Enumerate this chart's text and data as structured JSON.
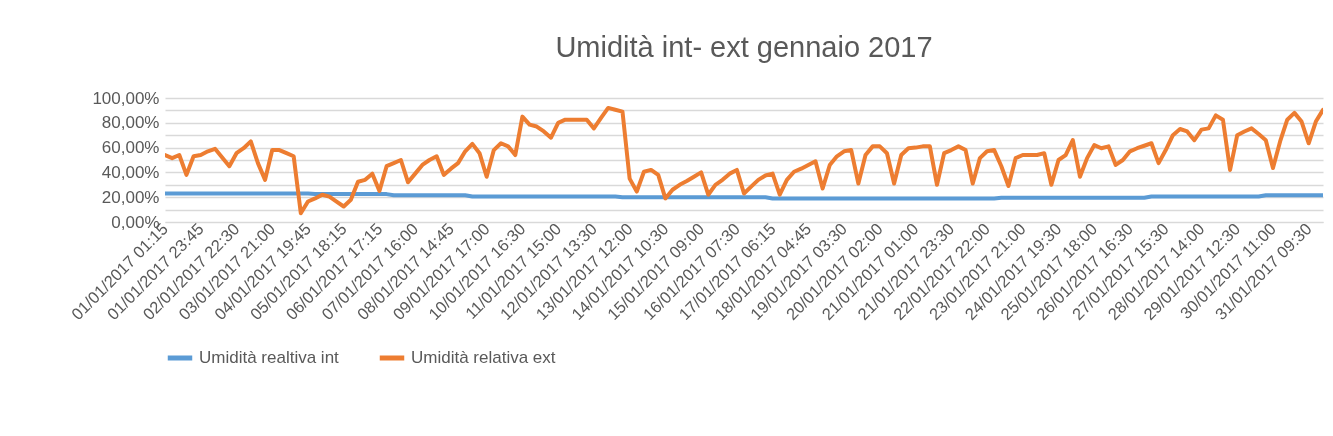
{
  "chart_data": {
    "type": "line",
    "title": "Umidità int- ext gennaio 2017",
    "categories": [
      "01/01/2017 01:15",
      null,
      null,
      null,
      null,
      "01/01/2017 23:45",
      null,
      null,
      null,
      null,
      "02/01/2017 22:30",
      null,
      null,
      null,
      null,
      "03/01/2017 21:00",
      null,
      null,
      null,
      null,
      "04/01/2017 19:45",
      null,
      null,
      null,
      null,
      "05/01/2017 18:15",
      null,
      null,
      null,
      null,
      "06/01/2017 17:15",
      null,
      null,
      null,
      null,
      "07/01/2017 16:00",
      null,
      null,
      null,
      null,
      "08/01/2017 14:45",
      null,
      null,
      null,
      null,
      "09/01/2017 17:00",
      null,
      null,
      null,
      null,
      "10/01/2017 16:30",
      null,
      null,
      null,
      null,
      "11/01/2017 15:00",
      null,
      null,
      null,
      null,
      "12/01/2017 13:30",
      null,
      null,
      null,
      null,
      "13/01/2017 12:00",
      null,
      null,
      null,
      null,
      "14/01/2017 10:30",
      null,
      null,
      null,
      null,
      "15/01/2017 09:00",
      null,
      null,
      null,
      null,
      "16/01/2017 07:30",
      null,
      null,
      null,
      null,
      "17/01/2017 06:15",
      null,
      null,
      null,
      null,
      "18/01/2017 04:45",
      null,
      null,
      null,
      null,
      "19/01/2017 03:30",
      null,
      null,
      null,
      null,
      "20/01/2017 02:00",
      null,
      null,
      null,
      null,
      "21/01/2017 01:00",
      null,
      null,
      null,
      null,
      "21/01/2017 23:30",
      null,
      null,
      null,
      null,
      "22/01/2017 22:00",
      null,
      null,
      null,
      null,
      "23/01/2017 21:00",
      null,
      null,
      null,
      null,
      "24/01/2017 19:30",
      null,
      null,
      null,
      null,
      "25/01/2017 18:00",
      null,
      null,
      null,
      null,
      "26/01/2017 16:30",
      null,
      null,
      null,
      null,
      "27/01/2017 15:30",
      null,
      null,
      null,
      null,
      "28/01/2017 14:00",
      null,
      null,
      null,
      null,
      "29/01/2017 12:30",
      null,
      null,
      null,
      null,
      "30/01/2017 11:00",
      null,
      null,
      null,
      null,
      "31/01/2017 09:30",
      null,
      null
    ],
    "series": [
      {
        "name": "Umidità realtiva int",
        "color": "#5b9bd5",
        "values": [
          23,
          23,
          23,
          23,
          23,
          23,
          23,
          23,
          23,
          23,
          23,
          23,
          23,
          23,
          23,
          23,
          23,
          23,
          23,
          23,
          23,
          22.5,
          22.5,
          22.5,
          22.5,
          22.5,
          22.5,
          22.5,
          22.5,
          22.5,
          22.5,
          22.5,
          21.5,
          21.5,
          21.5,
          21.5,
          21.5,
          21.5,
          21.5,
          21.5,
          21.5,
          21.5,
          21.5,
          20.5,
          20.5,
          20.5,
          20.5,
          20.5,
          20.5,
          20.5,
          20.5,
          20.5,
          20.5,
          20.5,
          20.5,
          20.5,
          20.5,
          20.5,
          20.5,
          20.5,
          20.5,
          20.5,
          20.5,
          20.5,
          20,
          20,
          20,
          20,
          20,
          20,
          20,
          20,
          20,
          20,
          20,
          20,
          20,
          20,
          20,
          20,
          20,
          20,
          20,
          20,
          20,
          19,
          19,
          19,
          19,
          19,
          19,
          19,
          19,
          19,
          19,
          19,
          19,
          19,
          19,
          19,
          19,
          19,
          19,
          19,
          19,
          19,
          19,
          19,
          19,
          19,
          19,
          19,
          19,
          19,
          19,
          19,
          19,
          19.5,
          19.5,
          19.5,
          19.5,
          19.5,
          19.5,
          19.5,
          19.5,
          19.5,
          19.5,
          19.5,
          19.5,
          19.5,
          19.5,
          19.5,
          19.5,
          19.5,
          19.5,
          19.5,
          19.5,
          19.5,
          20.5,
          20.5,
          20.5,
          20.5,
          20.5,
          20.5,
          20.5,
          20.5,
          20.5,
          20.5,
          20.5,
          20.5,
          20.5,
          20.5,
          20.5,
          20.5,
          21.5,
          21.5,
          21.5,
          21.5,
          21.5,
          21.5,
          21.5,
          21.5,
          21.5
        ]
      },
      {
        "name": "Umidità relativa ext",
        "color": "#ed7d31",
        "values": [
          54,
          51.5,
          54,
          38,
          53,
          54,
          57,
          59,
          52,
          45,
          55.5,
          59.5,
          65,
          47.5,
          34,
          58,
          58,
          55.5,
          53,
          7,
          16.5,
          19,
          22,
          20.5,
          16.5,
          12.5,
          18,
          32.5,
          34,
          39,
          25,
          45,
          47.5,
          50,
          32,
          39,
          46,
          50,
          53,
          38,
          43,
          47.5,
          57,
          63,
          55.5,
          36.5,
          58,
          63.5,
          61,
          54,
          85,
          78.5,
          77,
          73,
          68,
          80,
          82.5,
          82.5,
          82.5,
          82.5,
          75.5,
          84,
          92,
          90.5,
          89,
          35,
          24.5,
          40.5,
          42,
          38,
          19,
          26,
          30,
          33,
          36.5,
          40,
          22,
          30,
          34,
          39,
          42,
          23,
          28.5,
          34,
          37.5,
          39,
          22,
          34,
          40.5,
          43,
          46,
          49,
          27,
          46,
          53,
          57,
          58,
          31,
          54,
          61,
          61,
          55.5,
          31,
          54,
          59.5,
          60,
          61,
          61,
          30,
          55.5,
          58,
          61,
          58,
          31,
          51.5,
          57,
          58,
          45,
          29,
          51.5,
          54,
          54,
          54,
          55.5,
          30,
          50,
          54,
          66,
          36.5,
          51.5,
          62,
          59.5,
          61,
          46,
          50,
          57,
          59.5,
          61.5,
          63.5,
          47.5,
          58,
          70,
          75,
          73,
          66,
          74.5,
          75.5,
          86,
          82.5,
          42,
          70,
          73,
          75.5,
          71,
          66,
          43.5,
          65,
          82.5,
          88,
          81,
          63.5,
          81,
          90.5
        ]
      }
    ],
    "ylim": [
      0,
      100
    ],
    "yticks": [
      {
        "value": 0,
        "label": "0,00%"
      },
      {
        "value": 10,
        "label": null
      },
      {
        "value": 20,
        "label": "20,00%"
      },
      {
        "value": 30,
        "label": null
      },
      {
        "value": 40,
        "label": "40,00%"
      },
      {
        "value": 50,
        "label": null
      },
      {
        "value": 60,
        "label": "60,00%"
      },
      {
        "value": 70,
        "label": null
      },
      {
        "value": 80,
        "label": "80,00%"
      },
      {
        "value": 90,
        "label": null
      },
      {
        "value": 100,
        "label": "100,00%"
      }
    ],
    "grid": "y",
    "legend": "bottom",
    "line_style": "solid"
  }
}
